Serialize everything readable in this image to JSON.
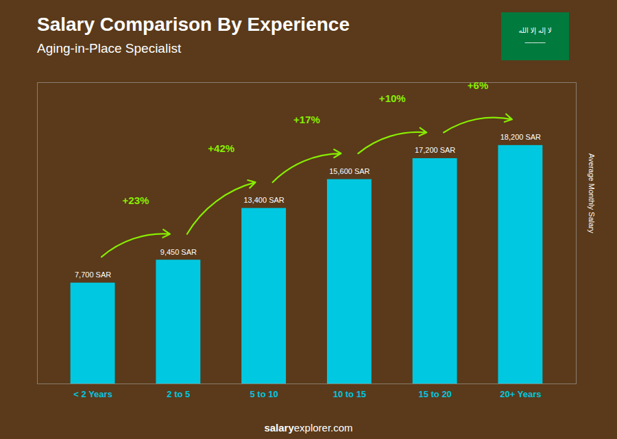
{
  "chart_data": {
    "type": "bar",
    "title": "Salary Comparison By Experience",
    "subtitle": "Aging-in-Place Specialist",
    "categories": [
      "< 2 Years",
      "2 to 5",
      "5 to 10",
      "10 to 15",
      "15 to 20",
      "20+ Years"
    ],
    "values": [
      7700,
      9450,
      13400,
      15600,
      17200,
      18200
    ],
    "value_labels": [
      "7,700 SAR",
      "9,450 SAR",
      "13,400 SAR",
      "15,600 SAR",
      "17,200 SAR",
      "18,200 SAR"
    ],
    "data_labels": true,
    "color": "#00c8e0",
    "ylabel": "Average Monthly Salary",
    "ylim": [
      0,
      23000
    ],
    "tick_labels": "x",
    "grid": false,
    "background": "#5a3a1a",
    "annotations": [
      {
        "text": "+23%",
        "from": "< 2 Years",
        "to": "2 to 5",
        "color": "#88ee00"
      },
      {
        "text": "+42%",
        "from": "2 to 5",
        "to": "5 to 10",
        "color": "#88ee00"
      },
      {
        "text": "+17%",
        "from": "5 to 10",
        "to": "10 to 15",
        "color": "#88ee00"
      },
      {
        "text": "+10%",
        "from": "10 to 15",
        "to": "15 to 20",
        "color": "#88ee00"
      },
      {
        "text": "+6%",
        "from": "15 to 20",
        "to": "20+ Years",
        "color": "#88ee00"
      }
    ],
    "caption": [
      "salary",
      "explorer.com"
    ],
    "flag": {
      "color": "#007a3d",
      "texts": [
        "لا إله إلا الله",
        "———"
      ]
    }
  }
}
